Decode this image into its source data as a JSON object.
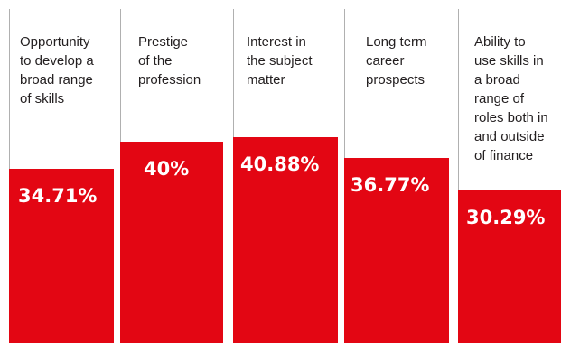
{
  "chart_data": {
    "type": "bar",
    "categories": [
      "Opportunity to develop a broad range of skills",
      "Prestige of the profession",
      "Interest in the subject matter",
      "Long term career prospects",
      "Ability to use skills in a broad range of roles both in and outside of finance"
    ],
    "category_lines": [
      [
        "Opportunity",
        "to develop a",
        "broad range",
        "of skills"
      ],
      [
        "Prestige",
        "of the",
        "profession"
      ],
      [
        "Interest in",
        "the subject",
        "matter"
      ],
      [
        "Long term",
        "career",
        "prospects"
      ],
      [
        "Ability to",
        "use skills in",
        "a broad",
        "range of",
        "roles both in",
        "and outside",
        "of finance"
      ]
    ],
    "values": [
      34.71,
      40,
      40.88,
      36.77,
      30.29
    ],
    "value_labels": [
      "34.71%",
      "40%",
      "40.88%",
      "36.77%",
      "30.29%"
    ],
    "bar_color": "#e30613",
    "separator_color": "#b0b0b0",
    "text_color": "#231f20",
    "value_label_color": "#ffffff"
  }
}
